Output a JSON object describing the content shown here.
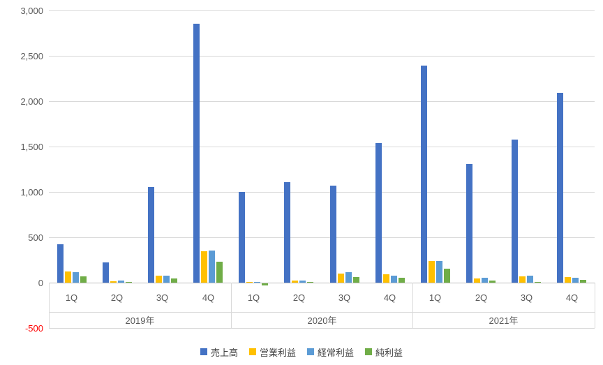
{
  "chart_data": {
    "type": "bar",
    "title": "",
    "legend_position": "bottom",
    "grid": true,
    "y_axis": {
      "min": -500,
      "max": 3000,
      "step": 500,
      "ticks": [
        {
          "label": "3,000",
          "value": 3000
        },
        {
          "label": "2,500",
          "value": 2500
        },
        {
          "label": "2,000",
          "value": 2000
        },
        {
          "label": "1,500",
          "value": 1500
        },
        {
          "label": "1,000",
          "value": 1000
        },
        {
          "label": "500",
          "value": 500
        },
        {
          "label": "0",
          "value": 0
        },
        {
          "label": "-500",
          "value": -500,
          "color": "#ff0000"
        }
      ]
    },
    "years": [
      "2019年",
      "2020年",
      "2021年"
    ],
    "quarters": [
      "1Q",
      "2Q",
      "3Q",
      "4Q"
    ],
    "series": [
      {
        "name": "売上高",
        "color": "#4472c4",
        "values": [
          [
            420,
            225,
            1055,
            2855
          ],
          [
            1000,
            1105,
            1070,
            1540
          ],
          [
            2395,
            1310,
            1580,
            2095
          ]
        ]
      },
      {
        "name": "営業利益",
        "color": "#ffc000",
        "values": [
          [
            125,
            15,
            80,
            345
          ],
          [
            5,
            20,
            100,
            95
          ],
          [
            240,
            45,
            70,
            60
          ]
        ]
      },
      {
        "name": "経常利益",
        "color": "#5b9bd5",
        "values": [
          [
            115,
            20,
            75,
            355
          ],
          [
            10,
            20,
            115,
            80
          ],
          [
            235,
            55,
            75,
            55
          ]
        ]
      },
      {
        "name": "純利益",
        "color": "#70ad47",
        "values": [
          [
            70,
            5,
            45,
            230
          ],
          [
            -20,
            10,
            65,
            50
          ],
          [
            150,
            25,
            5,
            30
          ]
        ]
      }
    ]
  }
}
